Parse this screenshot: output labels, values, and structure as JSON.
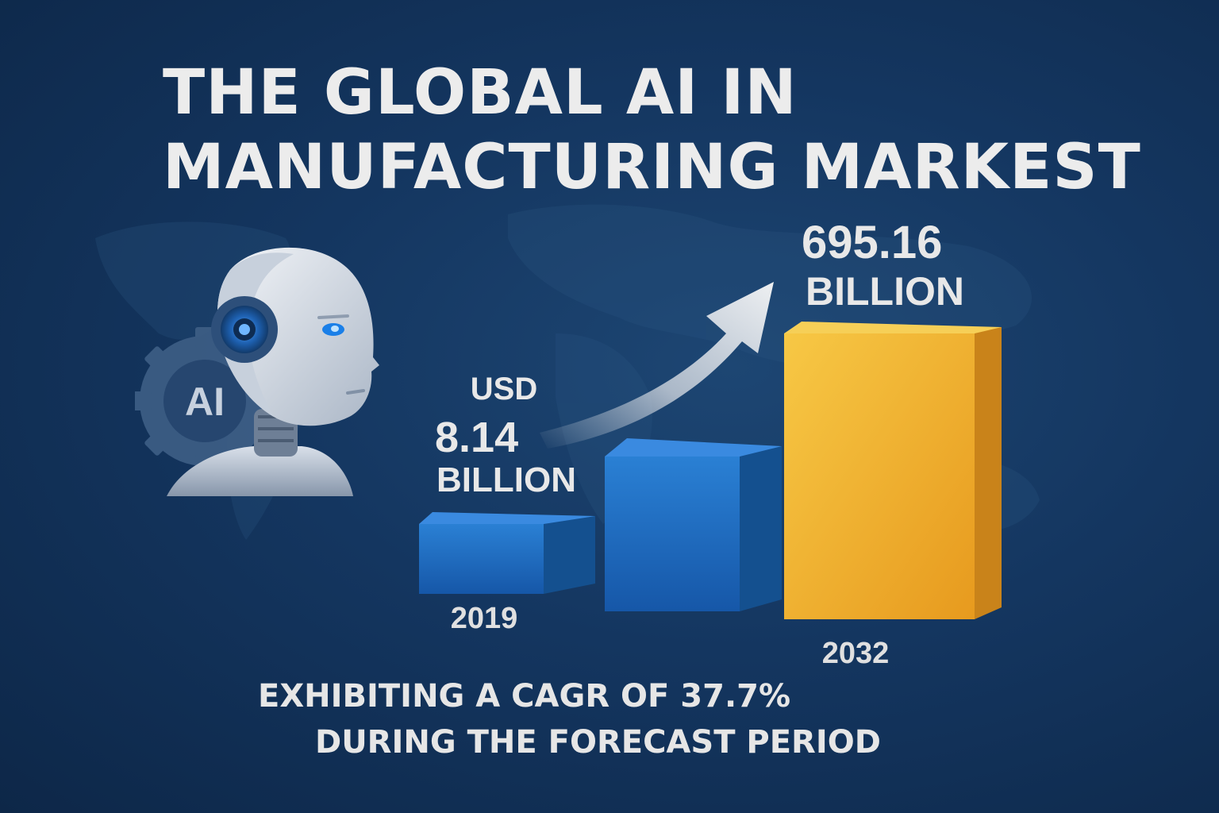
{
  "title": {
    "line1": "THE GLOBAL AI IN",
    "line2": "MANUFACTURING MARKEST"
  },
  "robot": {
    "badge_text": "AI",
    "icon": "robot-head-gear-icon"
  },
  "labels": {
    "usd_prefix": "USD",
    "value_2019": "8.14",
    "unit_2019": "BILLION",
    "value_2032": "695.16",
    "unit_2032": "BILLION",
    "year_start": "2019",
    "year_end": "2032"
  },
  "footer": {
    "line1": "EXHIBITING A CAGR OF 37.7%",
    "line2": "DURING THE FORECAST PERIOD"
  },
  "colors": {
    "background": "#143660",
    "bar_blue": "#1f6fc0",
    "bar_gold": "#f0b830",
    "text": "#e8e8e8"
  },
  "chart_data": {
    "type": "bar",
    "categories": [
      "2019",
      "",
      "2032"
    ],
    "values": [
      8.14,
      null,
      695.16
    ],
    "unit": "USD Billion",
    "title": "THE GLOBAL AI IN MANUFACTURING MARKEST",
    "annotations": [
      "USD 8.14 BILLION",
      "695.16 BILLION",
      "EXHIBITING A CAGR OF 37.7% DURING THE FORECAST PERIOD"
    ],
    "trend_arrow": "up"
  }
}
